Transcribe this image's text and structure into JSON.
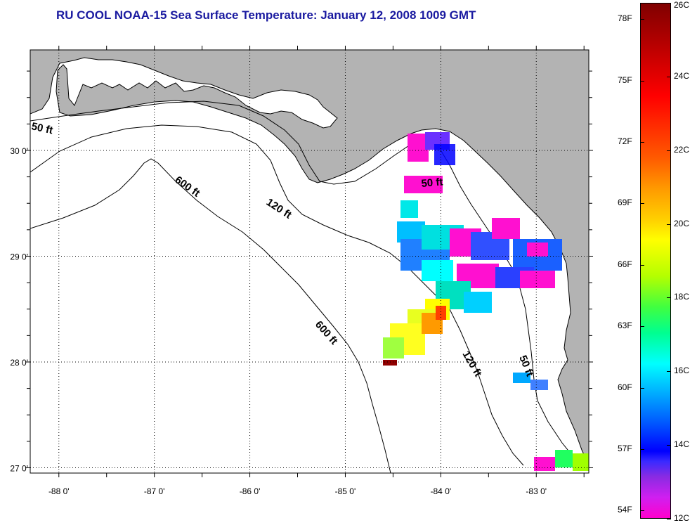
{
  "title": "RU COOL  NOAA-15  Sea Surface Temperature:  January 12, 2008 1009 GMT",
  "map": {
    "lon_range": [
      -88.3,
      -82.45
    ],
    "lat_range": [
      26.95,
      30.95
    ],
    "lon_ticks": [
      {
        "value": -88,
        "label": "-88 0'"
      },
      {
        "value": -87,
        "label": "-87 0'"
      },
      {
        "value": -86,
        "label": "-86 0'"
      },
      {
        "value": -85,
        "label": "-85 0'"
      },
      {
        "value": -84,
        "label": "-84 0'"
      },
      {
        "value": -83,
        "label": "-83 0'"
      }
    ],
    "lat_ticks": [
      {
        "value": 30,
        "label": "30 0'"
      },
      {
        "value": 29,
        "label": "29 0'"
      },
      {
        "value": 28,
        "label": "28 0'"
      },
      {
        "value": 27,
        "label": "27 0'"
      }
    ],
    "land_color": "#b3b3b3",
    "water_color": "#ffffff",
    "contour_labels": [
      "50 ft",
      "600 ft",
      "120 ft",
      "50 ft",
      "600 ft",
      "120 ft",
      "50 ft"
    ]
  },
  "colorbar": {
    "fahrenheit_labels": [
      "78F",
      "75F",
      "72F",
      "69F",
      "66F",
      "63F",
      "60F",
      "57F",
      "54F"
    ],
    "celsius_labels": [
      "26C",
      "24C",
      "22C",
      "20C",
      "18C",
      "16C",
      "14C",
      "12C"
    ],
    "min_c": 12,
    "max_c": 26
  }
}
